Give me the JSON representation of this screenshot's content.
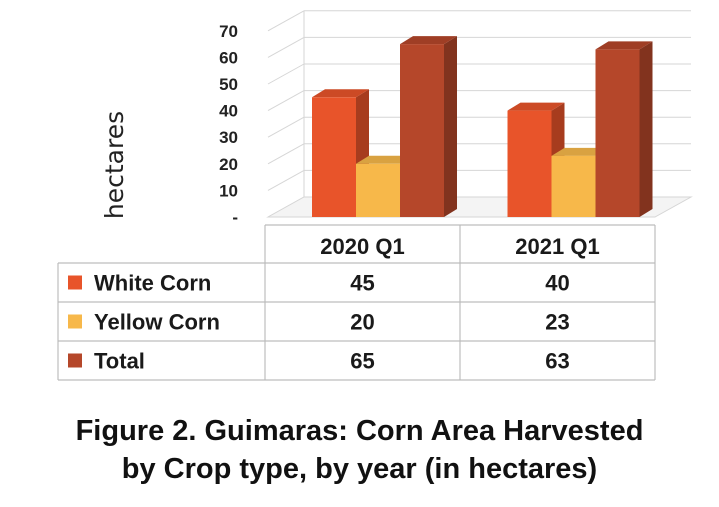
{
  "chart_data": {
    "type": "bar",
    "ylabel": "hectares",
    "yticks": [
      "-",
      "10",
      "20",
      "30",
      "40",
      "50",
      "60",
      "70"
    ],
    "ylim": [
      0,
      70
    ],
    "categories": [
      "2020 Q1",
      "2021 Q1"
    ],
    "series": [
      {
        "name": "White Corn",
        "values": [
          45,
          40
        ],
        "color": "#e8542a"
      },
      {
        "name": "Yellow Corn",
        "values": [
          20,
          23
        ],
        "color": "#f7b84a"
      },
      {
        "name": "Total",
        "values": [
          65,
          63
        ],
        "color": "#b5472a"
      }
    ],
    "table_values": [
      [
        "45",
        "40"
      ],
      [
        "20",
        "23"
      ],
      [
        "65",
        "63"
      ]
    ],
    "grid": true,
    "legend": "data-table"
  },
  "caption": {
    "line1": "Figure 2. Guimaras: Corn Area Harvested",
    "line2": "by Crop type, by year (in hectares)"
  }
}
